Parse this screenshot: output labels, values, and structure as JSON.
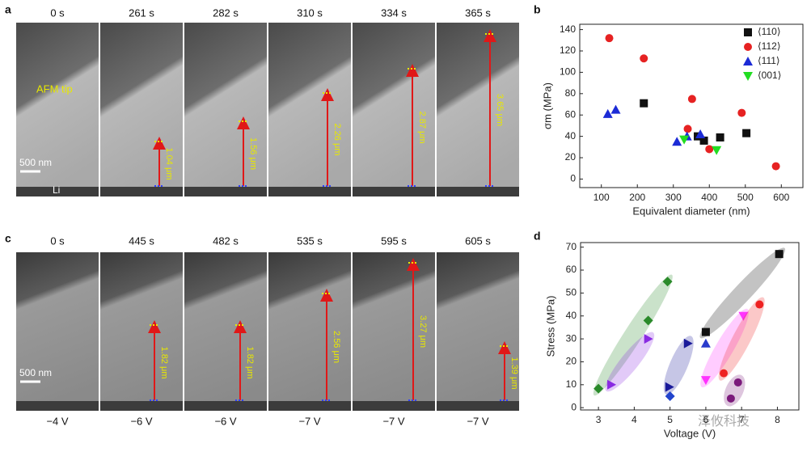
{
  "figure": {
    "panel_a": {
      "label": "a",
      "times": [
        "0 s",
        "261 s",
        "282 s",
        "310 s",
        "334 s",
        "365 s"
      ],
      "lengths": [
        "1.04 μm",
        "1.56 μm",
        "2.26 μm",
        "2.87 μm",
        "3.65 μm"
      ],
      "tip_label": "AFM tip",
      "scale_bar": "500 nm",
      "substrate_label": "Li"
    },
    "panel_c": {
      "label": "c",
      "times": [
        "0 s",
        "445 s",
        "482 s",
        "535 s",
        "595 s",
        "605 s"
      ],
      "lengths": [
        "1.82 μm",
        "1.82 μm",
        "2.56 μm",
        "3.27 μm",
        "1.39 μm"
      ],
      "scale_bar": "500 nm",
      "voltages": [
        "−4 V",
        "−6 V",
        "−6 V",
        "−7 V",
        "−7 V",
        "−7 V"
      ]
    },
    "watermark": "泽攸科技"
  },
  "chart_data": [
    {
      "type": "scatter",
      "label": "b",
      "x_label": "Equivalent diameter (nm)",
      "y_label": "σm (MPa)",
      "xlim": [
        40,
        660
      ],
      "ylim": [
        -8,
        145
      ],
      "xticks": [
        100,
        200,
        300,
        400,
        500,
        600
      ],
      "yticks": [
        0,
        20,
        40,
        60,
        80,
        100,
        120,
        140
      ],
      "legend": "top-right",
      "series": [
        {
          "name": "⟨110⟩",
          "color": "#111111",
          "marker": "square",
          "x": [
            218,
            368,
            385,
            430,
            503
          ],
          "values": [
            71,
            40,
            36,
            39,
            43
          ]
        },
        {
          "name": "⟨112⟩",
          "color": "#e62222",
          "marker": "circle",
          "x": [
            122,
            218,
            340,
            352,
            400,
            490,
            585
          ],
          "values": [
            132,
            113,
            47,
            75,
            28,
            62,
            12
          ]
        },
        {
          "name": "⟨111⟩",
          "color": "#1c2bd6",
          "marker": "triangle-up",
          "x": [
            118,
            140,
            310,
            338,
            375
          ],
          "values": [
            61,
            65,
            35,
            40,
            42
          ]
        },
        {
          "name": "⟨001⟩",
          "color": "#22dd22",
          "marker": "triangle-down",
          "x": [
            330,
            420
          ],
          "values": [
            37,
            27
          ]
        }
      ]
    },
    {
      "type": "scatter",
      "label": "d",
      "x_label": "Voltage (V)",
      "y_label": "Stress (MPa)",
      "xlim": [
        2.5,
        8.6
      ],
      "ylim": [
        -1,
        72
      ],
      "xticks": [
        3,
        4,
        5,
        6,
        7,
        8
      ],
      "yticks": [
        0,
        10,
        20,
        30,
        40,
        50,
        60,
        70
      ],
      "series": [
        {
          "color": "#2a8a2a",
          "marker": "diamond",
          "x": [
            3,
            4.39,
            4.93
          ],
          "values": [
            8.3,
            38,
            55
          ]
        },
        {
          "color": "#8a2be2",
          "marker": "triangle-right",
          "x": [
            3.36,
            4.39
          ],
          "values": [
            10,
            30
          ]
        },
        {
          "color": "#1a1a9a",
          "marker": "triangle-right",
          "x": [
            4.98,
            5.5
          ],
          "values": [
            9,
            28
          ]
        },
        {
          "color": "#2244cc",
          "marker": "diamond",
          "x": [
            5
          ],
          "values": [
            5
          ]
        },
        {
          "color": "#2a3ccc",
          "marker": "triangle-up",
          "x": [
            6
          ],
          "values": [
            28
          ]
        },
        {
          "color": "#111111",
          "marker": "square",
          "x": [
            6,
            8.05
          ],
          "values": [
            33,
            67
          ]
        },
        {
          "color": "#ff33ff",
          "marker": "triangle-down",
          "x": [
            6,
            7.05
          ],
          "values": [
            12,
            40
          ]
        },
        {
          "color": "#ee2222",
          "marker": "circle",
          "x": [
            6.5,
            7.5
          ],
          "values": [
            15,
            45
          ]
        },
        {
          "color": "#7b1a7b",
          "marker": "circle",
          "x": [
            6.7,
            6.9
          ],
          "values": [
            4,
            11
          ]
        }
      ]
    }
  ]
}
